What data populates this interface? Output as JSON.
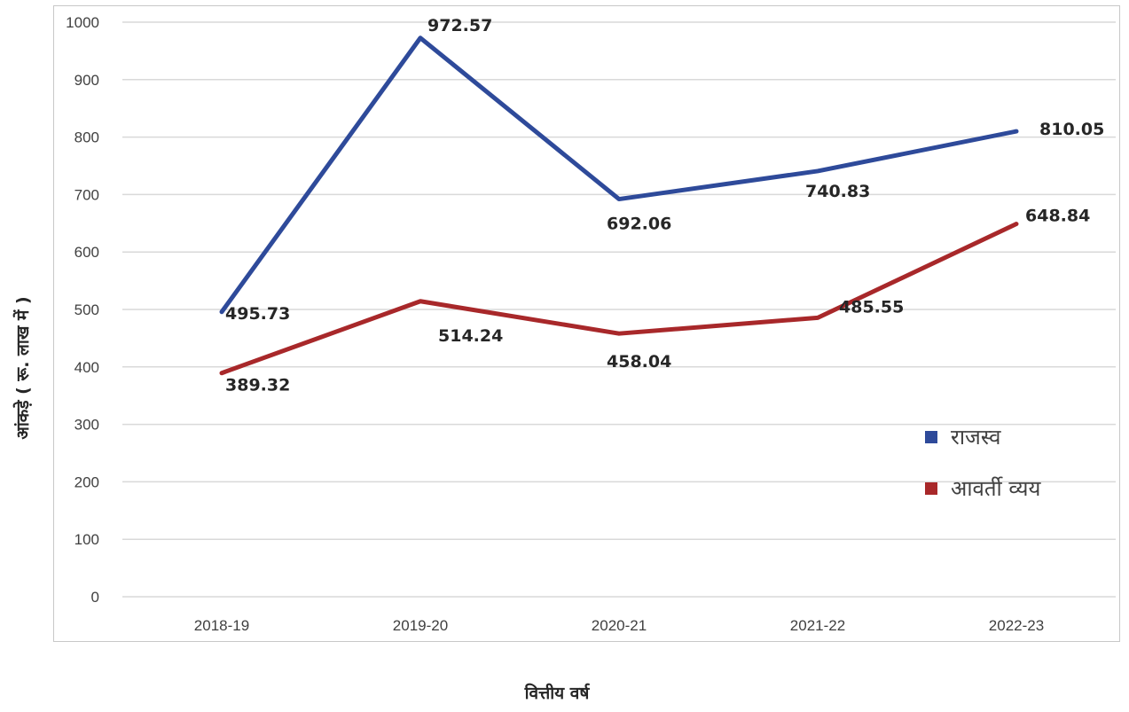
{
  "chart_data": {
    "type": "line",
    "title": "",
    "xlabel": "वित्तीय वर्ष",
    "ylabel": "आंकड़े ( रू. लाख में )",
    "categories": [
      "2018-19",
      "2019-20",
      "2020-21",
      "2021-22",
      "2022-23"
    ],
    "ylim": [
      0,
      1000
    ],
    "yticks": [
      0,
      100,
      200,
      300,
      400,
      500,
      600,
      700,
      800,
      900,
      1000
    ],
    "grid": true,
    "legend_position": "right",
    "series": [
      {
        "name": "राजस्व",
        "color": "#2e4a9a",
        "values": [
          495.73,
          972.57,
          692.06,
          740.83,
          810.05
        ],
        "labels": [
          "495.73",
          "972.57",
          "692.06",
          "740.83",
          "810.05"
        ]
      },
      {
        "name": "आवर्ती व्यय",
        "color": "#a8282a",
        "values": [
          389.32,
          514.24,
          458.04,
          485.55,
          648.84
        ],
        "labels": [
          "389.32",
          "514.24",
          "458.04",
          "485.55",
          "648.84"
        ]
      }
    ]
  }
}
